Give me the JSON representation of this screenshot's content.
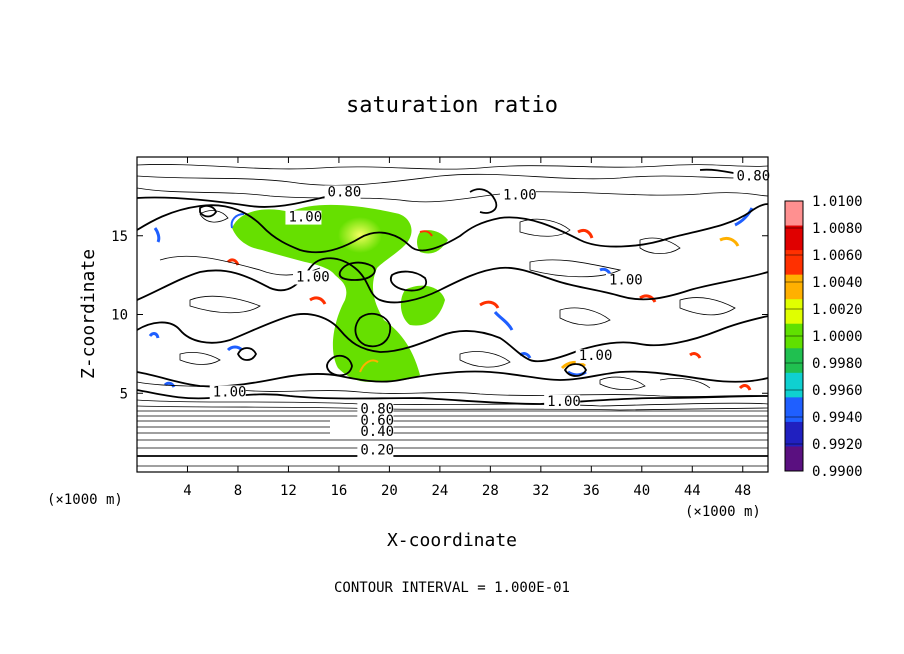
{
  "chart_data": {
    "type": "heatmap",
    "title": "saturation ratio",
    "xlabel": "X-coordinate",
    "ylabel": "Z-coordinate",
    "x_unit_label": "(×1000 m)",
    "x_unit_label_right": "(×1000 m)",
    "xlim": [
      0,
      50
    ],
    "ylim": [
      0,
      20
    ],
    "x_ticks": [
      4,
      8,
      12,
      16,
      20,
      24,
      28,
      32,
      36,
      40,
      44,
      48
    ],
    "y_ticks": [
      5,
      10,
      15
    ],
    "footer": "CONTOUR INTERVAL = 1.000E-01",
    "grid": false,
    "legend_placement": "right",
    "colorbar": {
      "levels": [
        "0.9900",
        "0.9920",
        "0.9940",
        "0.9960",
        "0.9980",
        "1.0000",
        "1.0020",
        "1.0040",
        "1.0060",
        "1.0080",
        "1.0100"
      ],
      "colors": [
        "#5a1080",
        "#2020c0",
        "#1f5fff",
        "#0fd0d0",
        "#20c050",
        "#60e000",
        "#e0ff00",
        "#ffb000",
        "#ff3000",
        "#e00000",
        "#ff9090"
      ]
    },
    "contour_labels": [
      {
        "text": "0.80",
        "x": 15.1,
        "y": 17.5
      },
      {
        "text": "1.00",
        "x": 12.0,
        "y": 15.9
      },
      {
        "text": "0.80",
        "x": 47.5,
        "y": 18.5
      },
      {
        "text": "1.00",
        "x": 29.0,
        "y": 17.3
      },
      {
        "text": "1.00",
        "x": 12.6,
        "y": 12.1
      },
      {
        "text": "1.00",
        "x": 37.4,
        "y": 11.9
      },
      {
        "text": "1.00",
        "x": 35.0,
        "y": 7.1
      },
      {
        "text": "1.00",
        "x": 6.0,
        "y": 4.8
      },
      {
        "text": "1.00",
        "x": 32.5,
        "y": 4.2
      },
      {
        "text": "0.80",
        "x": 17.7,
        "y": 3.7
      },
      {
        "text": "0.60",
        "x": 17.7,
        "y": 3.0
      },
      {
        "text": "0.40",
        "x": 17.7,
        "y": 2.3
      },
      {
        "text": "0.20",
        "x": 17.7,
        "y": 1.1
      }
    ]
  }
}
